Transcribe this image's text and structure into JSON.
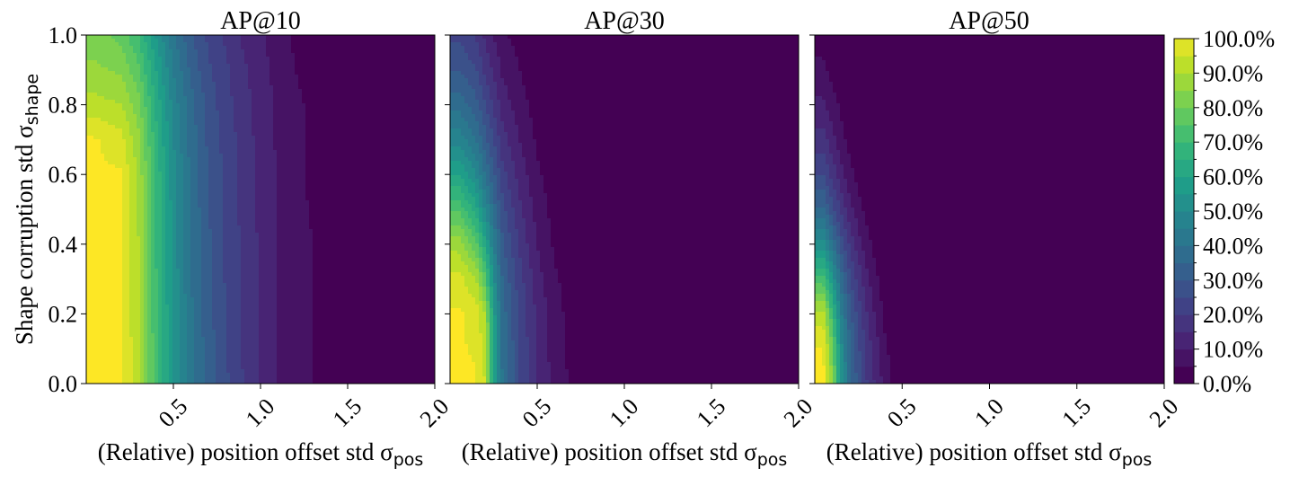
{
  "chart_data": [
    {
      "type": "heatmap",
      "title": "AP@10",
      "xlabel": "(Relative) position offset std σ",
      "xlabel_sub": "pos",
      "ylabel": "Shape corruption std σ",
      "ylabel_sub": "shape",
      "xlim": [
        0,
        2.0
      ],
      "ylim": [
        0,
        1.0
      ],
      "xticks": [
        "0.5",
        "1.0",
        "1.5",
        "2.0"
      ],
      "yticks": [
        "0.0",
        "0.2",
        "0.4",
        "0.6",
        "0.8",
        "1.0"
      ],
      "x": [
        0.05,
        0.2,
        0.3,
        0.4,
        0.5,
        0.6,
        0.7,
        0.8,
        0.9,
        1.0,
        1.1,
        1.2,
        1.3,
        1.4,
        1.5,
        1.7,
        2.0
      ],
      "y": [
        0.0,
        0.2,
        0.4,
        0.6,
        0.7,
        0.8,
        0.9,
        1.0
      ],
      "values": [
        [
          100,
          100,
          92,
          72,
          55,
          42,
          33,
          26,
          20,
          15,
          10,
          7,
          5,
          2,
          0,
          0,
          0
        ],
        [
          100,
          100,
          91,
          71,
          54,
          41,
          32,
          25,
          19,
          14,
          10,
          7,
          5,
          2,
          0,
          0,
          0
        ],
        [
          100,
          100,
          90,
          70,
          53,
          40,
          31,
          24,
          19,
          14,
          10,
          7,
          5,
          2,
          0,
          0,
          0
        ],
        [
          100,
          100,
          89,
          69,
          52,
          39,
          30,
          24,
          18,
          14,
          10,
          6,
          4,
          2,
          0,
          0,
          0
        ],
        [
          100,
          97,
          86,
          67,
          50,
          38,
          29,
          23,
          18,
          13,
          9,
          6,
          4,
          2,
          0,
          0,
          0
        ],
        [
          92,
          90,
          82,
          64,
          48,
          37,
          28,
          22,
          17,
          13,
          9,
          6,
          4,
          1,
          0,
          0,
          0
        ],
        [
          86,
          84,
          76,
          60,
          45,
          34,
          26,
          21,
          16,
          12,
          8,
          5,
          3,
          1,
          0,
          0,
          0
        ],
        [
          82,
          78,
          70,
          55,
          41,
          31,
          24,
          19,
          14,
          11,
          7,
          4,
          2,
          0,
          0,
          0,
          0
        ]
      ]
    },
    {
      "type": "heatmap",
      "title": "AP@30",
      "xlabel": "(Relative) position offset std σ",
      "xlabel_sub": "pos",
      "xlim": [
        0,
        2.0
      ],
      "ylim": [
        0,
        1.0
      ],
      "xticks": [
        "0.5",
        "1.0",
        "1.5",
        "2.0"
      ],
      "x": [
        0.05,
        0.15,
        0.2,
        0.25,
        0.3,
        0.4,
        0.5,
        0.6,
        0.7,
        0.8,
        1.0,
        1.5,
        2.0
      ],
      "y": [
        0.0,
        0.2,
        0.3,
        0.4,
        0.5,
        0.6,
        0.7,
        0.8,
        0.9,
        1.0
      ],
      "values": [
        [
          100,
          100,
          95,
          60,
          40,
          25,
          15,
          8,
          4,
          0,
          0,
          0,
          0
        ],
        [
          100,
          98,
          90,
          58,
          38,
          24,
          14,
          7,
          3,
          0,
          0,
          0,
          0
        ],
        [
          97,
          90,
          76,
          52,
          35,
          22,
          12,
          6,
          2,
          0,
          0,
          0,
          0
        ],
        [
          88,
          76,
          62,
          45,
          31,
          19,
          10,
          4,
          1,
          0,
          0,
          0,
          0
        ],
        [
          74,
          62,
          50,
          38,
          27,
          16,
          8,
          3,
          0,
          0,
          0,
          0,
          0
        ],
        [
          60,
          50,
          40,
          31,
          22,
          13,
          6,
          2,
          0,
          0,
          0,
          0,
          0
        ],
        [
          48,
          40,
          32,
          25,
          17,
          10,
          4,
          1,
          0,
          0,
          0,
          0,
          0
        ],
        [
          38,
          32,
          25,
          19,
          13,
          7,
          3,
          0,
          0,
          0,
          0,
          0,
          0
        ],
        [
          30,
          25,
          19,
          14,
          9,
          5,
          1,
          0,
          0,
          0,
          0,
          0,
          0
        ],
        [
          24,
          19,
          14,
          10,
          6,
          3,
          0,
          0,
          0,
          0,
          0,
          0,
          0
        ]
      ]
    },
    {
      "type": "heatmap",
      "title": "AP@50",
      "xlabel": "(Relative) position offset std σ",
      "xlabel_sub": "pos",
      "xlim": [
        0,
        2.0
      ],
      "ylim": [
        0,
        1.0
      ],
      "xticks": [
        "0.5",
        "1.0",
        "1.5",
        "2.0"
      ],
      "x": [
        0.05,
        0.1,
        0.15,
        0.2,
        0.25,
        0.3,
        0.35,
        0.4,
        0.5,
        0.7,
        1.0,
        1.5,
        2.0
      ],
      "y": [
        0.0,
        0.1,
        0.2,
        0.3,
        0.4,
        0.5,
        0.6,
        0.7,
        0.8,
        0.9,
        1.0
      ],
      "values": [
        [
          100,
          85,
          55,
          38,
          28,
          20,
          14,
          8,
          0,
          0,
          0,
          0,
          0
        ],
        [
          100,
          80,
          52,
          36,
          26,
          18,
          12,
          6,
          0,
          0,
          0,
          0,
          0
        ],
        [
          92,
          70,
          46,
          32,
          23,
          15,
          9,
          4,
          0,
          0,
          0,
          0,
          0
        ],
        [
          72,
          55,
          38,
          26,
          18,
          11,
          6,
          2,
          0,
          0,
          0,
          0,
          0
        ],
        [
          52,
          40,
          28,
          19,
          12,
          7,
          3,
          0,
          0,
          0,
          0,
          0,
          0
        ],
        [
          36,
          27,
          19,
          12,
          7,
          3,
          1,
          0,
          0,
          0,
          0,
          0,
          0
        ],
        [
          25,
          18,
          12,
          7,
          3,
          1,
          0,
          0,
          0,
          0,
          0,
          0,
          0
        ],
        [
          17,
          12,
          7,
          3,
          1,
          0,
          0,
          0,
          0,
          0,
          0,
          0,
          0
        ],
        [
          11,
          7,
          4,
          1,
          0,
          0,
          0,
          0,
          0,
          0,
          0,
          0,
          0
        ],
        [
          6,
          3,
          1,
          0,
          0,
          0,
          0,
          0,
          0,
          0,
          0,
          0,
          0
        ],
        [
          3,
          1,
          0,
          0,
          0,
          0,
          0,
          0,
          0,
          0,
          0,
          0,
          0
        ]
      ]
    }
  ],
  "colorbar": {
    "ticks": [
      "0.0%",
      "10.0%",
      "20.0%",
      "30.0%",
      "40.0%",
      "50.0%",
      "60.0%",
      "70.0%",
      "80.0%",
      "90.0%",
      "100.0%"
    ],
    "levels": [
      0,
      5,
      10,
      15,
      20,
      25,
      30,
      35,
      40,
      45,
      50,
      55,
      60,
      65,
      70,
      75,
      80,
      85,
      90,
      95,
      100
    ],
    "colormap": "viridis",
    "colors": [
      "#440154",
      "#482878",
      "#3e4989",
      "#31688e",
      "#26828e",
      "#1f9e89",
      "#35b779",
      "#6ece58",
      "#b5de2b",
      "#fde725"
    ]
  }
}
